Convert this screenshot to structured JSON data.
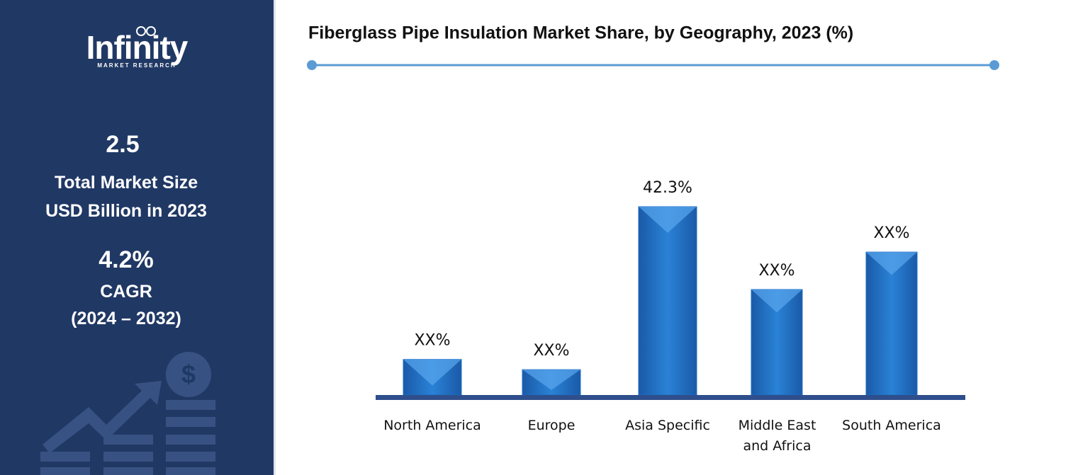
{
  "sidebar": {
    "logo": "Infinity",
    "logo_tagline": "MARKET RESEARCH",
    "market_size": "2.5",
    "market_size_label_1": "Total Market Size",
    "market_size_label_2": "USD Billion in 2023",
    "cagr": "4.2%",
    "cagr_label": "CAGR",
    "cagr_period": "(2024 – 2032)"
  },
  "chart_data": {
    "type": "bar",
    "title": "Fiberglass Pipe Insulation Market Share, by Geography, 2023 (%)",
    "categories": [
      "North America",
      "Europe",
      "Asia Specific",
      "Middle East and Africa",
      "South America"
    ],
    "values": [
      8,
      5.7,
      42.3,
      23.7,
      32.1
    ],
    "value_labels": [
      "XX%",
      "XX%",
      "42.3%",
      "XX%",
      "XX%"
    ],
    "color": "#1f6fc5"
  }
}
